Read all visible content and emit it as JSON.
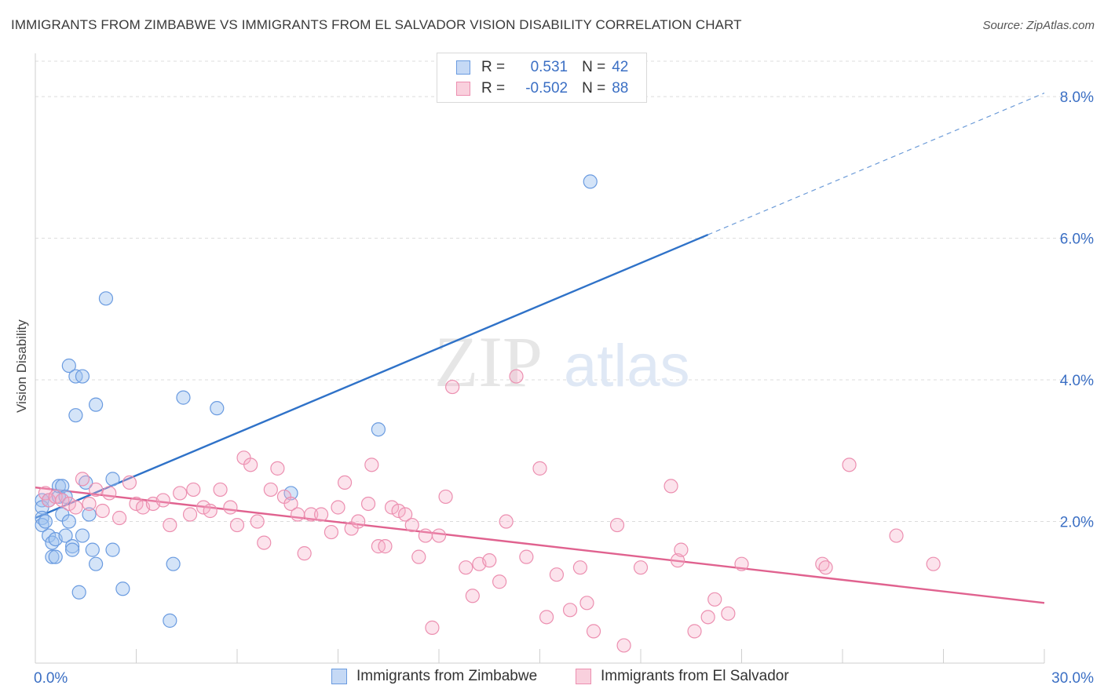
{
  "title": "IMMIGRANTS FROM ZIMBABWE VS IMMIGRANTS FROM EL SALVADOR VISION DISABILITY CORRELATION CHART",
  "source": "Source: ZipAtlas.com",
  "watermark": {
    "zip": "ZIP",
    "atlas": "atlas"
  },
  "legend": {
    "r_label": "R =",
    "n_label": "N =",
    "rows": [
      {
        "r": "0.531",
        "n": "42",
        "color": "#6a9be0"
      },
      {
        "r": "-0.502",
        "n": "88",
        "color": "#ec8fb0"
      }
    ]
  },
  "chart_data": {
    "type": "scatter",
    "xlabel": "",
    "ylabel": "Vision Disability",
    "xlim": [
      0,
      30
    ],
    "ylim": [
      0,
      8.5
    ],
    "x_tick_labels": [
      "0.0%",
      "30.0%"
    ],
    "y_ticks": [
      2,
      4,
      6,
      8
    ],
    "y_tick_labels": [
      "2.0%",
      "4.0%",
      "6.0%",
      "8.0%"
    ],
    "grid": true,
    "legend_position": "top-center",
    "series": [
      {
        "name": "Immigrants from Zimbabwe",
        "color": "#6a9be0",
        "line_color": "#2f72c8",
        "trend": {
          "x": [
            0,
            20
          ],
          "y": [
            2.05,
            6.05
          ],
          "dashed_to": [
            30,
            8.05
          ]
        },
        "points": [
          [
            0.2,
            2.3
          ],
          [
            0.2,
            2.2
          ],
          [
            0.2,
            2.05
          ],
          [
            0.2,
            1.95
          ],
          [
            0.3,
            2.0
          ],
          [
            0.4,
            2.3
          ],
          [
            0.4,
            1.8
          ],
          [
            0.5,
            1.7
          ],
          [
            0.5,
            1.5
          ],
          [
            0.6,
            1.75
          ],
          [
            0.6,
            1.5
          ],
          [
            0.7,
            2.35
          ],
          [
            0.7,
            2.5
          ],
          [
            0.8,
            2.1
          ],
          [
            0.8,
            2.5
          ],
          [
            0.9,
            2.35
          ],
          [
            0.9,
            1.8
          ],
          [
            1.0,
            4.2
          ],
          [
            1.0,
            2.0
          ],
          [
            1.1,
            1.65
          ],
          [
            1.1,
            1.6
          ],
          [
            1.2,
            4.05
          ],
          [
            1.2,
            3.5
          ],
          [
            1.3,
            1.0
          ],
          [
            1.4,
            4.05
          ],
          [
            1.4,
            1.8
          ],
          [
            1.5,
            2.55
          ],
          [
            1.6,
            2.1
          ],
          [
            1.7,
            1.6
          ],
          [
            1.8,
            3.65
          ],
          [
            1.8,
            1.4
          ],
          [
            2.1,
            5.15
          ],
          [
            2.3,
            2.6
          ],
          [
            2.3,
            1.6
          ],
          [
            2.6,
            1.05
          ],
          [
            4.1,
            1.4
          ],
          [
            4.4,
            3.75
          ],
          [
            4.0,
            0.6
          ],
          [
            5.4,
            3.6
          ],
          [
            7.6,
            2.4
          ],
          [
            10.2,
            3.3
          ],
          [
            16.5,
            6.8
          ]
        ]
      },
      {
        "name": "Immigrants from El Salvador",
        "color": "#ec8fb0",
        "line_color": "#e0628f",
        "trend": {
          "x": [
            0,
            30
          ],
          "y": [
            2.48,
            0.85
          ]
        },
        "points": [
          [
            0.3,
            2.4
          ],
          [
            0.4,
            2.3
          ],
          [
            0.6,
            2.35
          ],
          [
            0.8,
            2.3
          ],
          [
            1.0,
            2.25
          ],
          [
            1.2,
            2.2
          ],
          [
            1.4,
            2.6
          ],
          [
            1.6,
            2.25
          ],
          [
            1.8,
            2.45
          ],
          [
            2.0,
            2.15
          ],
          [
            2.2,
            2.4
          ],
          [
            2.5,
            2.05
          ],
          [
            2.8,
            2.55
          ],
          [
            3.0,
            2.25
          ],
          [
            3.2,
            2.2
          ],
          [
            3.5,
            2.25
          ],
          [
            3.8,
            2.3
          ],
          [
            4.0,
            1.95
          ],
          [
            4.3,
            2.4
          ],
          [
            4.6,
            2.1
          ],
          [
            4.7,
            2.45
          ],
          [
            5.0,
            2.2
          ],
          [
            5.2,
            2.15
          ],
          [
            5.5,
            2.45
          ],
          [
            5.8,
            2.2
          ],
          [
            6.0,
            1.95
          ],
          [
            6.2,
            2.9
          ],
          [
            6.4,
            2.8
          ],
          [
            6.6,
            2.0
          ],
          [
            6.8,
            1.7
          ],
          [
            7.0,
            2.45
          ],
          [
            7.2,
            2.75
          ],
          [
            7.4,
            2.35
          ],
          [
            7.6,
            2.25
          ],
          [
            7.8,
            2.1
          ],
          [
            8.0,
            1.55
          ],
          [
            8.2,
            2.1
          ],
          [
            8.5,
            2.1
          ],
          [
            8.8,
            1.85
          ],
          [
            9.0,
            2.2
          ],
          [
            9.2,
            2.55
          ],
          [
            9.4,
            1.9
          ],
          [
            9.6,
            2.0
          ],
          [
            9.9,
            2.25
          ],
          [
            10.0,
            2.8
          ],
          [
            10.2,
            1.65
          ],
          [
            10.4,
            1.65
          ],
          [
            10.6,
            2.2
          ],
          [
            10.8,
            2.15
          ],
          [
            11.0,
            2.1
          ],
          [
            11.2,
            1.95
          ],
          [
            11.4,
            1.5
          ],
          [
            11.6,
            1.8
          ],
          [
            11.8,
            0.5
          ],
          [
            12.0,
            1.8
          ],
          [
            12.2,
            2.35
          ],
          [
            12.4,
            3.9
          ],
          [
            12.8,
            1.35
          ],
          [
            13.0,
            0.95
          ],
          [
            13.2,
            1.4
          ],
          [
            13.5,
            1.45
          ],
          [
            13.8,
            1.15
          ],
          [
            14.0,
            2.0
          ],
          [
            14.3,
            4.05
          ],
          [
            14.6,
            1.5
          ],
          [
            15.0,
            2.75
          ],
          [
            15.2,
            0.65
          ],
          [
            15.5,
            1.25
          ],
          [
            15.9,
            0.75
          ],
          [
            16.2,
            1.35
          ],
          [
            16.4,
            0.85
          ],
          [
            16.6,
            0.45
          ],
          [
            17.3,
            1.95
          ],
          [
            17.5,
            0.25
          ],
          [
            18.0,
            1.35
          ],
          [
            18.9,
            2.5
          ],
          [
            19.1,
            1.45
          ],
          [
            19.2,
            1.6
          ],
          [
            19.6,
            0.45
          ],
          [
            20.0,
            0.65
          ],
          [
            20.2,
            0.9
          ],
          [
            20.6,
            0.7
          ],
          [
            21.0,
            1.4
          ],
          [
            23.4,
            1.4
          ],
          [
            23.5,
            1.35
          ],
          [
            24.2,
            2.8
          ],
          [
            25.6,
            1.8
          ],
          [
            26.7,
            1.4
          ]
        ]
      }
    ]
  }
}
